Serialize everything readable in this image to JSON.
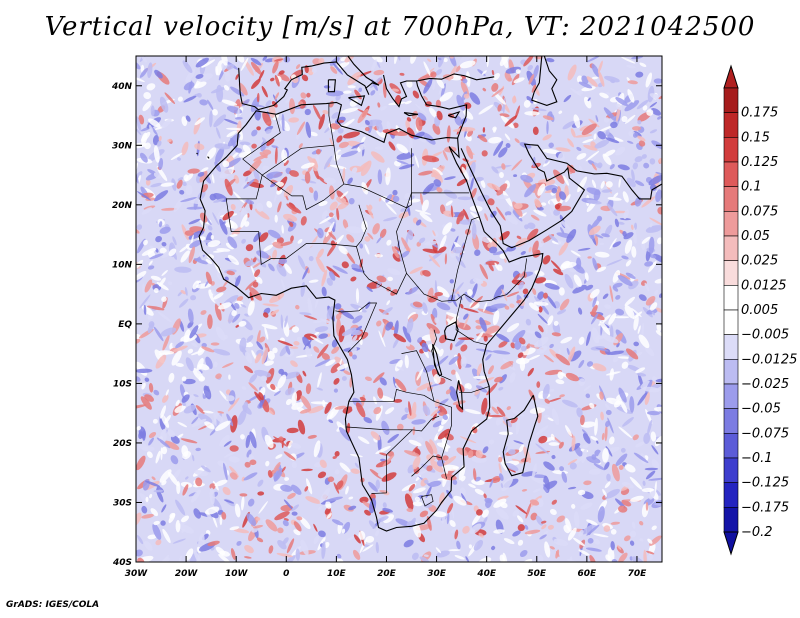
{
  "title": "Vertical velocity [m/s] at 700hPa, VT: 2021042500",
  "footer": "GrADS: IGES/COLA",
  "map": {
    "lon_range": [
      -30,
      75
    ],
    "lat_range": [
      -40,
      45
    ],
    "x_ticks": [
      {
        "lon": -30,
        "label": "30W"
      },
      {
        "lon": -20,
        "label": "20W"
      },
      {
        "lon": -10,
        "label": "10W"
      },
      {
        "lon": 0,
        "label": "0"
      },
      {
        "lon": 10,
        "label": "10E"
      },
      {
        "lon": 20,
        "label": "20E"
      },
      {
        "lon": 30,
        "label": "30E"
      },
      {
        "lon": 40,
        "label": "40E"
      },
      {
        "lon": 50,
        "label": "50E"
      },
      {
        "lon": 60,
        "label": "60E"
      },
      {
        "lon": 70,
        "label": "70E"
      }
    ],
    "y_ticks": [
      {
        "lat": 40,
        "label": "40N"
      },
      {
        "lat": 30,
        "label": "30N"
      },
      {
        "lat": 20,
        "label": "20N"
      },
      {
        "lat": 10,
        "label": "10N"
      },
      {
        "lat": 0,
        "label": "EQ"
      },
      {
        "lat": -10,
        "label": "10S"
      },
      {
        "lat": -20,
        "label": "20S"
      },
      {
        "lat": -30,
        "label": "30S"
      },
      {
        "lat": -40,
        "label": "40S"
      }
    ]
  },
  "colorbar": {
    "levels": [
      {
        "label": "0.175",
        "color": "#a61c1c"
      },
      {
        "label": "0.15",
        "color": "#be2828"
      },
      {
        "label": "0.125",
        "color": "#d23c3c"
      },
      {
        "label": "0.1",
        "color": "#de5a5a"
      },
      {
        "label": "0.075",
        "color": "#e67a7a"
      },
      {
        "label": "0.05",
        "color": "#ee9b9b"
      },
      {
        "label": "0.025",
        "color": "#f4bcbc"
      },
      {
        "label": "0.0125",
        "color": "#f9dcdc"
      },
      {
        "label": "0.005",
        "color": "#ffffff"
      },
      {
        "label": "−0.005",
        "color": "#ffffff"
      },
      {
        "label": "−0.0125",
        "color": "#dcdcf8"
      },
      {
        "label": "−0.025",
        "color": "#bcbcf2"
      },
      {
        "label": "−0.05",
        "color": "#9c9cec"
      },
      {
        "label": "−0.075",
        "color": "#7c7ce2"
      },
      {
        "label": "−0.1",
        "color": "#5c5cd8"
      },
      {
        "label": "−0.125",
        "color": "#3e3ece"
      },
      {
        "label": "−0.175",
        "color": "#2424c0"
      },
      {
        "label": "−0.2",
        "color": "#1414a8"
      }
    ],
    "top_color": "#b02020",
    "bottom_color": "#1010a0"
  }
}
